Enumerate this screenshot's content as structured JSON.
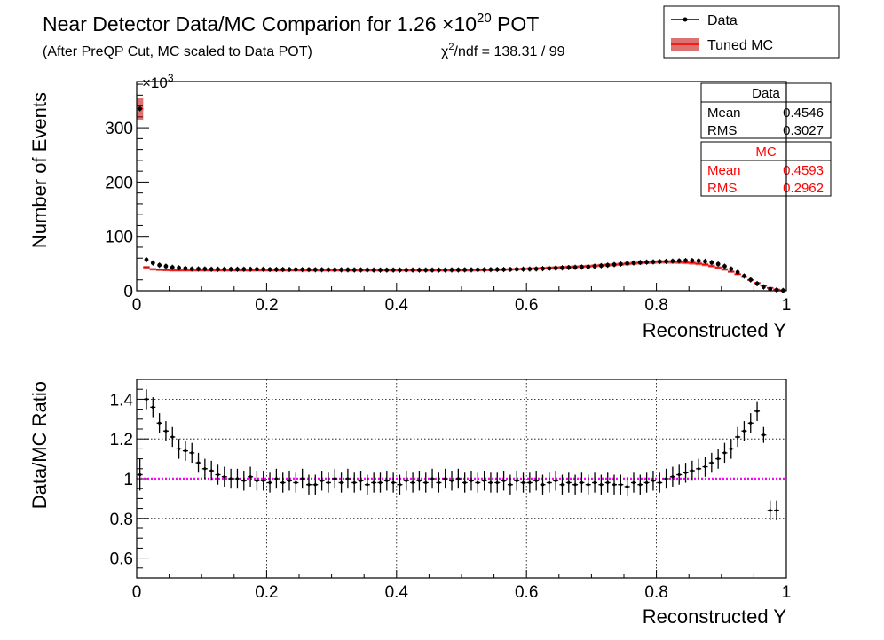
{
  "header": {
    "title_main": "Near Detector Data/MC Comparion for 1.26 ",
    "title_times": "×10",
    "title_exp": "20",
    "title_tail": " POT",
    "subtitle": "(After PreQP Cut, MC scaled to Data POT)",
    "chi2_prefix": "χ",
    "chi2_sup": "2",
    "chi2_rest": "/ndf = 138.31 / 99"
  },
  "legend": {
    "data_label": "Data",
    "mc_label": "Tuned MC"
  },
  "stats": {
    "data": {
      "title": "Data",
      "mean_label": "Mean",
      "mean": "0.4546",
      "rms_label": "RMS",
      "rms": "0.3027"
    },
    "mc": {
      "title": "MC",
      "mean_label": "Mean",
      "mean": "0.4593",
      "rms_label": "RMS",
      "rms": "0.2962"
    }
  },
  "colors": {
    "data": "#000000",
    "mc": "#ff0000",
    "ratio_line": "#ff00ff",
    "mc_band": "#c00000"
  },
  "chart_data": [
    {
      "type": "line",
      "name": "top",
      "xlabel": "Reconstructed Y",
      "ylabel": "Number of Events",
      "y_exponent_label": "×10",
      "y_exponent_sup": "3",
      "xlim": [
        0,
        1
      ],
      "ylim": [
        0,
        385
      ],
      "y_unit": "thousands",
      "xticks": [
        "0",
        "0.2",
        "0.4",
        "0.6",
        "0.8",
        "1"
      ],
      "yticks": [
        "0",
        "100",
        "200",
        "300"
      ],
      "x": [
        0.005,
        0.015,
        0.025,
        0.035,
        0.045,
        0.055,
        0.065,
        0.075,
        0.085,
        0.095,
        0.105,
        0.115,
        0.125,
        0.135,
        0.145,
        0.155,
        0.165,
        0.175,
        0.185,
        0.195,
        0.205,
        0.215,
        0.225,
        0.235,
        0.245,
        0.255,
        0.265,
        0.275,
        0.285,
        0.295,
        0.305,
        0.315,
        0.325,
        0.335,
        0.345,
        0.355,
        0.365,
        0.375,
        0.385,
        0.395,
        0.405,
        0.415,
        0.425,
        0.435,
        0.445,
        0.455,
        0.465,
        0.475,
        0.485,
        0.495,
        0.505,
        0.515,
        0.525,
        0.535,
        0.545,
        0.555,
        0.565,
        0.575,
        0.585,
        0.595,
        0.605,
        0.615,
        0.625,
        0.635,
        0.645,
        0.655,
        0.665,
        0.675,
        0.685,
        0.695,
        0.705,
        0.715,
        0.725,
        0.735,
        0.745,
        0.755,
        0.765,
        0.775,
        0.785,
        0.795,
        0.805,
        0.815,
        0.825,
        0.835,
        0.845,
        0.855,
        0.865,
        0.875,
        0.885,
        0.895,
        0.905,
        0.915,
        0.925,
        0.935,
        0.945,
        0.955,
        0.965,
        0.975,
        0.985,
        0.995
      ],
      "series": [
        {
          "name": "Data",
          "values": [
            335,
            57,
            51,
            47,
            45,
            43,
            42,
            41,
            40,
            40,
            40,
            39.5,
            39.5,
            39.5,
            39.5,
            39.5,
            39.5,
            39.5,
            39.5,
            39.5,
            39,
            39,
            39,
            39,
            39,
            38.8,
            38.8,
            38.6,
            38.6,
            38.6,
            38.4,
            38.4,
            38.4,
            38.2,
            38.2,
            38.2,
            38,
            38,
            38,
            38,
            38,
            38,
            38,
            38,
            38,
            38,
            38,
            38,
            38.2,
            38.2,
            38.4,
            38.4,
            38.6,
            38.6,
            38.8,
            39,
            39,
            39.2,
            39.4,
            39.6,
            39.8,
            40,
            40.5,
            41,
            41.5,
            42,
            42.5,
            43,
            43.5,
            44,
            45,
            46,
            47,
            48,
            49,
            50,
            51,
            52,
            52.5,
            53,
            53.5,
            54,
            54.5,
            55,
            55.5,
            55.5,
            55,
            54,
            52,
            49,
            45,
            40,
            34,
            27,
            20,
            13,
            7,
            3,
            1.5,
            0.5
          ]
        },
        {
          "name": "Tuned MC",
          "values": [
            335,
            43,
            39.5,
            38.5,
            38,
            37.5,
            37.5,
            37.5,
            37.5,
            37.5,
            37.5,
            37.5,
            37.5,
            37.5,
            37.5,
            37.5,
            37.5,
            37.5,
            37.5,
            37.5,
            37.5,
            37.5,
            37.5,
            37.5,
            37.5,
            37.5,
            37.5,
            37.5,
            37.5,
            37.5,
            37.5,
            37.5,
            37.5,
            37.5,
            37.5,
            37.5,
            37.5,
            37.5,
            37.5,
            37.5,
            37.5,
            37.5,
            37.5,
            37.5,
            37.5,
            37.5,
            37.5,
            37.5,
            37.5,
            37.5,
            37.5,
            37.6,
            37.8,
            38,
            38.2,
            38.5,
            38.8,
            39.2,
            39.6,
            40,
            40.5,
            41,
            41.5,
            42,
            42.5,
            43,
            43.5,
            44,
            44.5,
            45,
            45.8,
            46.5,
            47.3,
            48,
            48.8,
            49.6,
            50.4,
            51.2,
            52,
            52.5,
            53,
            53,
            52.8,
            52.4,
            51.8,
            51,
            49.8,
            48,
            45.5,
            42.5,
            39,
            35,
            30.5,
            25.5,
            20,
            14.5,
            9.5,
            5.5,
            2.5,
            1
          ]
        }
      ]
    },
    {
      "type": "line",
      "name": "bottom",
      "xlabel": "Reconstructed Y",
      "ylabel": "Data/MC Ratio",
      "xlim": [
        0,
        1
      ],
      "ylim": [
        0.5,
        1.5
      ],
      "xticks": [
        "0",
        "0.2",
        "0.4",
        "0.6",
        "0.8",
        "1"
      ],
      "yticks": [
        "0.6",
        "0.8",
        "1",
        "1.2",
        "1.4"
      ],
      "reference_line": 1,
      "x": [
        0.005,
        0.015,
        0.025,
        0.035,
        0.045,
        0.055,
        0.065,
        0.075,
        0.085,
        0.095,
        0.105,
        0.115,
        0.125,
        0.135,
        0.145,
        0.155,
        0.165,
        0.175,
        0.185,
        0.195,
        0.205,
        0.215,
        0.225,
        0.235,
        0.245,
        0.255,
        0.265,
        0.275,
        0.285,
        0.295,
        0.305,
        0.315,
        0.325,
        0.335,
        0.345,
        0.355,
        0.365,
        0.375,
        0.385,
        0.395,
        0.405,
        0.415,
        0.425,
        0.435,
        0.445,
        0.455,
        0.465,
        0.475,
        0.485,
        0.495,
        0.505,
        0.515,
        0.525,
        0.535,
        0.545,
        0.555,
        0.565,
        0.575,
        0.585,
        0.595,
        0.605,
        0.615,
        0.625,
        0.635,
        0.645,
        0.655,
        0.665,
        0.675,
        0.685,
        0.695,
        0.705,
        0.715,
        0.725,
        0.735,
        0.745,
        0.755,
        0.765,
        0.775,
        0.785,
        0.795,
        0.805,
        0.815,
        0.825,
        0.835,
        0.845,
        0.855,
        0.865,
        0.875,
        0.885,
        0.895,
        0.905,
        0.915,
        0.925,
        0.935,
        0.945,
        0.955,
        0.965,
        0.975,
        0.985
      ],
      "series": [
        {
          "name": "Data/MC",
          "values": [
            1.02,
            1.4,
            1.36,
            1.28,
            1.24,
            1.21,
            1.15,
            1.14,
            1.13,
            1.08,
            1.05,
            1.04,
            1.02,
            1.01,
            1.0,
            1.0,
            0.99,
            1.01,
            0.99,
            0.99,
            0.98,
            1.0,
            0.98,
            0.99,
            0.98,
            1.0,
            0.97,
            0.97,
            0.99,
            0.98,
            1.0,
            0.98,
            1.0,
            0.98,
            0.99,
            0.97,
            0.98,
            0.98,
            0.99,
            0.98,
            0.97,
            0.99,
            0.98,
            0.99,
            0.98,
            1.0,
            0.98,
            1.0,
            0.99,
            1.0,
            0.98,
            0.99,
            0.98,
            0.99,
            0.98,
            0.98,
            0.99,
            0.97,
            0.99,
            0.98,
            0.98,
            0.99,
            0.97,
            0.98,
            0.99,
            0.97,
            0.98,
            0.97,
            0.98,
            0.97,
            0.98,
            0.97,
            0.98,
            0.97,
            0.97,
            0.96,
            0.98,
            0.97,
            0.98,
            0.99,
            0.98,
            1.0,
            1.01,
            1.02,
            1.03,
            1.04,
            1.05,
            1.06,
            1.08,
            1.1,
            1.13,
            1.15,
            1.21,
            1.24,
            1.28,
            1.34,
            1.22,
            0.84,
            0.84
          ],
          "err": [
            0.08,
            0.05,
            0.05,
            0.05,
            0.05,
            0.05,
            0.05,
            0.05,
            0.05,
            0.05,
            0.05,
            0.05,
            0.05,
            0.05,
            0.05,
            0.05,
            0.05,
            0.05,
            0.05,
            0.05,
            0.05,
            0.05,
            0.05,
            0.05,
            0.05,
            0.05,
            0.05,
            0.05,
            0.05,
            0.05,
            0.05,
            0.05,
            0.05,
            0.05,
            0.05,
            0.05,
            0.05,
            0.05,
            0.05,
            0.05,
            0.05,
            0.05,
            0.05,
            0.05,
            0.05,
            0.05,
            0.05,
            0.05,
            0.05,
            0.05,
            0.05,
            0.05,
            0.05,
            0.05,
            0.05,
            0.05,
            0.05,
            0.05,
            0.05,
            0.05,
            0.05,
            0.05,
            0.05,
            0.05,
            0.05,
            0.05,
            0.05,
            0.05,
            0.05,
            0.05,
            0.05,
            0.05,
            0.05,
            0.05,
            0.05,
            0.05,
            0.05,
            0.05,
            0.05,
            0.05,
            0.05,
            0.05,
            0.05,
            0.05,
            0.05,
            0.05,
            0.05,
            0.05,
            0.05,
            0.05,
            0.05,
            0.05,
            0.05,
            0.05,
            0.05,
            0.05,
            0.04,
            0.05,
            0.05
          ]
        }
      ]
    }
  ]
}
